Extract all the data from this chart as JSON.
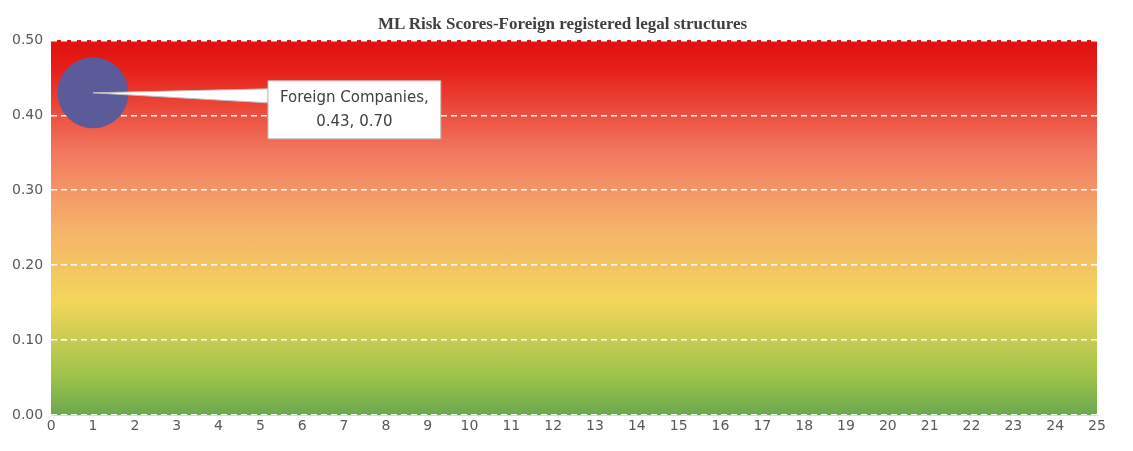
{
  "chart_data": {
    "type": "bubble",
    "title": "ML Risk Scores-Foreign registered legal structures",
    "series": [
      {
        "color": "#5b5b9a",
        "x": [
          1
        ],
        "values": [
          0.43
        ],
        "sizes": [
          1
        ]
      }
    ],
    "annotations": [
      {
        "text": "Foreign Companies, 0.43, 0.70",
        "x": 1,
        "y": 0.43
      }
    ],
    "xlim": [
      0,
      25
    ],
    "xticks": [
      0,
      1,
      2,
      3,
      4,
      5,
      6,
      7,
      8,
      9,
      10,
      11,
      12,
      13,
      14,
      15,
      16,
      17,
      18,
      19,
      20,
      21,
      22,
      23,
      24,
      25
    ],
    "ylim": [
      0,
      0.5
    ],
    "yticks": [
      {
        "value": 0,
        "label": "0.00"
      },
      {
        "value": 0.1,
        "label": "0.10"
      },
      {
        "value": 0.2,
        "label": "0.20"
      },
      {
        "value": 0.3,
        "label": "0.30"
      },
      {
        "value": 0.4,
        "label": "0.40"
      },
      {
        "value": 0.5,
        "label": "0.50"
      }
    ],
    "grid": "y",
    "legend": false
  }
}
